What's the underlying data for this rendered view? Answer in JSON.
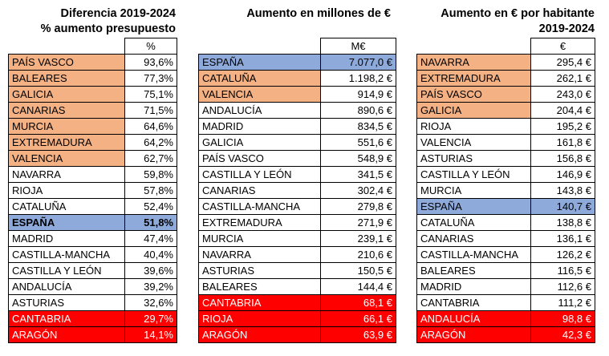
{
  "table1": {
    "title_line1": "Diferencia 2019-2024",
    "title_line2": "% aumento presupuesto",
    "unit": "%",
    "rows": [
      {
        "label": "PAÍS VASCO",
        "value": "93,6%",
        "hl": "orange"
      },
      {
        "label": "BALEARES",
        "value": "77,3%",
        "hl": "orange"
      },
      {
        "label": "GALICIA",
        "value": "75,1%",
        "hl": "orange"
      },
      {
        "label": "CANARIAS",
        "value": "71,5%",
        "hl": "orange"
      },
      {
        "label": "MURCIA",
        "value": "64,6%",
        "hl": "orange"
      },
      {
        "label": "EXTREMADURA",
        "value": "64,2%",
        "hl": "orange"
      },
      {
        "label": "VALENCIA",
        "value": "62,7%",
        "hl": "orange"
      },
      {
        "label": "NAVARRA",
        "value": "59,8%",
        "hl": ""
      },
      {
        "label": "RIOJA",
        "value": "57,8%",
        "hl": ""
      },
      {
        "label": "CATALUÑA",
        "value": "52,4%",
        "hl": ""
      },
      {
        "label": "ESPAÑA",
        "value": "51,8%",
        "hl": "blue bold"
      },
      {
        "label": "MADRID",
        "value": "47,4%",
        "hl": ""
      },
      {
        "label": "CASTILLA-MANCHA",
        "value": "40,4%",
        "hl": ""
      },
      {
        "label": "CASTILLA Y LEÓN",
        "value": "39,6%",
        "hl": ""
      },
      {
        "label": "ANDALUCÍA",
        "value": "39,2%",
        "hl": ""
      },
      {
        "label": "ASTURIAS",
        "value": "32,6%",
        "hl": ""
      },
      {
        "label": "CANTABRIA",
        "value": "29,7%",
        "hl": "red"
      },
      {
        "label": "ARAGÓN",
        "value": "14,1%",
        "hl": "red"
      }
    ]
  },
  "table2": {
    "title": "Aumento en millones de €",
    "unit": "M€",
    "rows": [
      {
        "label": "ESPAÑA",
        "value": "7.077,0 €",
        "hl": "blue"
      },
      {
        "label": "CATALUÑA",
        "value": "1.198,2 €",
        "hl": "orange"
      },
      {
        "label": "VALENCIA",
        "value": "914,9 €",
        "hl": "orange"
      },
      {
        "label": "ANDALUCÍA",
        "value": "890,6 €",
        "hl": ""
      },
      {
        "label": "MADRID",
        "value": "834,5 €",
        "hl": ""
      },
      {
        "label": "GALICIA",
        "value": "551,6 €",
        "hl": ""
      },
      {
        "label": "PAÍS VASCO",
        "value": "548,9 €",
        "hl": ""
      },
      {
        "label": "CASTILLA Y LEÓN",
        "value": "341,5 €",
        "hl": ""
      },
      {
        "label": "CANARIAS",
        "value": "302,4 €",
        "hl": ""
      },
      {
        "label": "CASTILLA-MANCHA",
        "value": "279,8 €",
        "hl": ""
      },
      {
        "label": "EXTREMADURA",
        "value": "271,9 €",
        "hl": ""
      },
      {
        "label": "MURCIA",
        "value": "239,1 €",
        "hl": ""
      },
      {
        "label": "NAVARRA",
        "value": "210,6 €",
        "hl": ""
      },
      {
        "label": "ASTURIAS",
        "value": "150,5 €",
        "hl": ""
      },
      {
        "label": "BALEARES",
        "value": "144,4 €",
        "hl": ""
      },
      {
        "label": "CANTABRIA",
        "value": "68,1 €",
        "hl": "red"
      },
      {
        "label": "RIOJA",
        "value": "66,1 €",
        "hl": "red"
      },
      {
        "label": "ARAGÓN",
        "value": "63,9 €",
        "hl": "red"
      }
    ]
  },
  "table3": {
    "title_line1": "Aumento en € por habitante",
    "title_line2": "2019-2024",
    "unit": "€",
    "rows": [
      {
        "label": "NAVARRA",
        "value": "295,4 €",
        "hl": "orange"
      },
      {
        "label": "EXTREMADURA",
        "value": "262,1 €",
        "hl": "orange"
      },
      {
        "label": "PAÍS VASCO",
        "value": "243,0 €",
        "hl": "orange"
      },
      {
        "label": "GALICIA",
        "value": "204,4 €",
        "hl": "orange"
      },
      {
        "label": "RIOJA",
        "value": "195,2 €",
        "hl": ""
      },
      {
        "label": "VALENCIA",
        "value": "161,8 €",
        "hl": ""
      },
      {
        "label": "ASTURIAS",
        "value": "156,8 €",
        "hl": ""
      },
      {
        "label": "CASTILLA Y LEÓN",
        "value": "146,9 €",
        "hl": ""
      },
      {
        "label": "MURCIA",
        "value": "143,8 €",
        "hl": ""
      },
      {
        "label": "ESPAÑA",
        "value": "140,7 €",
        "hl": "blue"
      },
      {
        "label": "CATALUÑA",
        "value": "138,8 €",
        "hl": ""
      },
      {
        "label": "CANARIAS",
        "value": "136,1 €",
        "hl": ""
      },
      {
        "label": "CASTILLA-MANCHA",
        "value": "126,2 €",
        "hl": ""
      },
      {
        "label": "BALEARES",
        "value": "116,5 €",
        "hl": ""
      },
      {
        "label": "MADRID",
        "value": "112,6 €",
        "hl": ""
      },
      {
        "label": "CANTABRIA",
        "value": "111,2 €",
        "hl": ""
      },
      {
        "label": "ANDALUCÍA",
        "value": "98,8 €",
        "hl": "red"
      },
      {
        "label": "ARAGÓN",
        "value": "42,3 €",
        "hl": "red"
      }
    ]
  },
  "colors": {
    "orange": "#f4b184",
    "blue": "#8eaadb",
    "red": "#ff0000"
  }
}
